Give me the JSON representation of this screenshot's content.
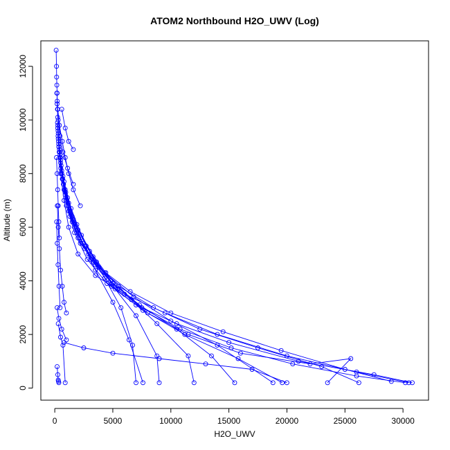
{
  "chart_data": {
    "type": "line",
    "title": "ATOM2 Northbound H2O_UWV (Log)",
    "xlabel": "H2O_UWV",
    "ylabel": "Altitude (m)",
    "xlim": [
      -1200,
      32200
    ],
    "ylim": [
      -450,
      12950
    ],
    "xticks": [
      0,
      5000,
      10000,
      15000,
      20000,
      25000,
      30000
    ],
    "yticks": [
      0,
      2000,
      4000,
      6000,
      8000,
      10000,
      12000
    ],
    "grid": false,
    "legend": "none",
    "color": "#0000ff",
    "marker": "open-circle",
    "series": [
      {
        "x": [
          120,
          150,
          160,
          180,
          200,
          210,
          230,
          250
        ],
        "y": [
          12600,
          12000,
          11600,
          11300,
          11000,
          10700,
          10400,
          10100
        ]
      },
      {
        "x": [
          230,
          350,
          500,
          800,
          1200,
          2000,
          3500,
          6000,
          9500,
          14000,
          20000,
          26000,
          30500
        ],
        "y": [
          9900,
          9000,
          8000,
          7000,
          6000,
          5000,
          4200,
          3500,
          2800,
          2000,
          1200,
          600,
          200
        ]
      },
      {
        "x": [
          260,
          420,
          650,
          1000,
          1700,
          2800,
          4500,
          7000,
          10500,
          15000,
          21000,
          27500,
          30800
        ],
        "y": [
          9800,
          8800,
          7800,
          6800,
          5800,
          4800,
          3900,
          3100,
          2400,
          1700,
          1000,
          500,
          200
        ]
      },
      {
        "x": [
          300,
          500,
          800,
          1300,
          2200,
          3800,
          6500,
          10000,
          14500,
          19500,
          25000,
          29000
        ],
        "y": [
          9500,
          8500,
          7400,
          6400,
          5400,
          4500,
          3600,
          2800,
          2100,
          1400,
          700,
          250
        ]
      },
      {
        "x": [
          280,
          480,
          750,
          1200,
          2000,
          3300,
          5500,
          8500,
          12500,
          17500,
          23000,
          26200
        ],
        "y": [
          9600,
          8600,
          7600,
          6600,
          5600,
          4700,
          3800,
          3000,
          2200,
          1500,
          800,
          200
        ]
      },
      {
        "x": [
          320,
          520,
          900,
          1500,
          2600,
          4300,
          6800,
          10000,
          14000,
          18800
        ],
        "y": [
          9200,
          8200,
          7200,
          6200,
          5200,
          4300,
          3400,
          2500,
          1600,
          200
        ]
      },
      {
        "x": [
          350,
          600,
          1000,
          1700,
          2900,
          4800,
          7300,
          10500,
          13500,
          15500
        ],
        "y": [
          9000,
          8000,
          7000,
          6000,
          5000,
          4000,
          3100,
          2200,
          1200,
          200
        ]
      },
      {
        "x": [
          300,
          550,
          950,
          1600,
          2700,
          4400,
          6600,
          8800,
          11500,
          12000
        ],
        "y": [
          9300,
          8300,
          7300,
          6300,
          5300,
          4300,
          3300,
          2400,
          1200,
          200
        ]
      },
      {
        "x": [
          250,
          450,
          800,
          1400,
          2300,
          3600,
          5200,
          7000,
          8800,
          9000
        ],
        "y": [
          9700,
          8700,
          7700,
          6700,
          5700,
          4700,
          3700,
          2700,
          1200,
          200
        ]
      },
      {
        "x": [
          330,
          600,
          1100,
          1900,
          3000,
          4300,
          5700,
          6700,
          7000
        ],
        "y": [
          9100,
          8100,
          7100,
          6100,
          5100,
          4100,
          3000,
          1600,
          200
        ]
      },
      {
        "x": [
          280,
          500,
          900,
          1500,
          2400,
          3500,
          5000,
          6400,
          7600
        ],
        "y": [
          9400,
          8400,
          7400,
          6400,
          5400,
          4400,
          3200,
          1800,
          200
        ]
      },
      {
        "x": [
          400,
          700,
          1200,
          2000,
          3300,
          5000,
          7500,
          10800,
          15200,
          20500,
          26000,
          30200
        ],
        "y": [
          8900,
          7900,
          6900,
          5900,
          4900,
          3900,
          3000,
          2200,
          1500,
          900,
          450,
          200
        ]
      },
      {
        "x": [
          380,
          680,
          1150,
          1900,
          3100,
          4900,
          7600,
          11200,
          15800,
          19600
        ],
        "y": [
          8800,
          7800,
          6800,
          5800,
          4800,
          3800,
          2900,
          2000,
          1100,
          200
        ]
      },
      {
        "x": [
          420,
          750,
          1300,
          2200,
          3500,
          5400,
          8000,
          11500,
          16000,
          22000,
          25500,
          23500
        ],
        "y": [
          8600,
          7600,
          6600,
          5600,
          4600,
          3700,
          2800,
          2000,
          1300,
          900,
          1100,
          200
        ]
      },
      {
        "x": [
          200,
          260,
          300,
          320,
          350
        ],
        "y": [
          800,
          500,
          300,
          250,
          200
        ]
      },
      {
        "x": [
          300,
          500,
          700,
          900
        ],
        "y": [
          2400,
          1900,
          1600,
          200
        ]
      },
      {
        "x": [
          800,
          2500,
          5000,
          9000,
          13000,
          17000,
          20000
        ],
        "y": [
          1700,
          1500,
          1300,
          1100,
          900,
          700,
          200
        ]
      },
      {
        "x": [
          200,
          350,
          600,
          1000
        ],
        "y": [
          3000,
          2600,
          2200,
          1800
        ]
      },
      {
        "x": [
          180,
          260,
          400,
          650,
          900,
          1200,
          1600,
          2200
        ],
        "y": [
          11000,
          10400,
          9800,
          9200,
          8600,
          8000,
          7400,
          6800
        ]
      },
      {
        "x": [
          200,
          300,
          450,
          700,
          1100,
          1600
        ],
        "y": [
          10600,
          10000,
          9400,
          8800,
          8200,
          7600
        ]
      },
      {
        "x": [
          600,
          900,
          1200,
          1600
        ],
        "y": [
          10400,
          9700,
          9200,
          8900
        ]
      },
      {
        "x": [
          150,
          200,
          250,
          300,
          350,
          400
        ],
        "y": [
          8600,
          8000,
          7400,
          6800,
          6200,
          5600
        ]
      },
      {
        "x": [
          220,
          300,
          400,
          500,
          650,
          800,
          1000
        ],
        "y": [
          6800,
          6000,
          5200,
          4400,
          3800,
          3200,
          2800
        ]
      },
      {
        "x": [
          160,
          210,
          280,
          360,
          460
        ],
        "y": [
          6200,
          5400,
          4600,
          3800,
          3000
        ]
      }
    ]
  }
}
